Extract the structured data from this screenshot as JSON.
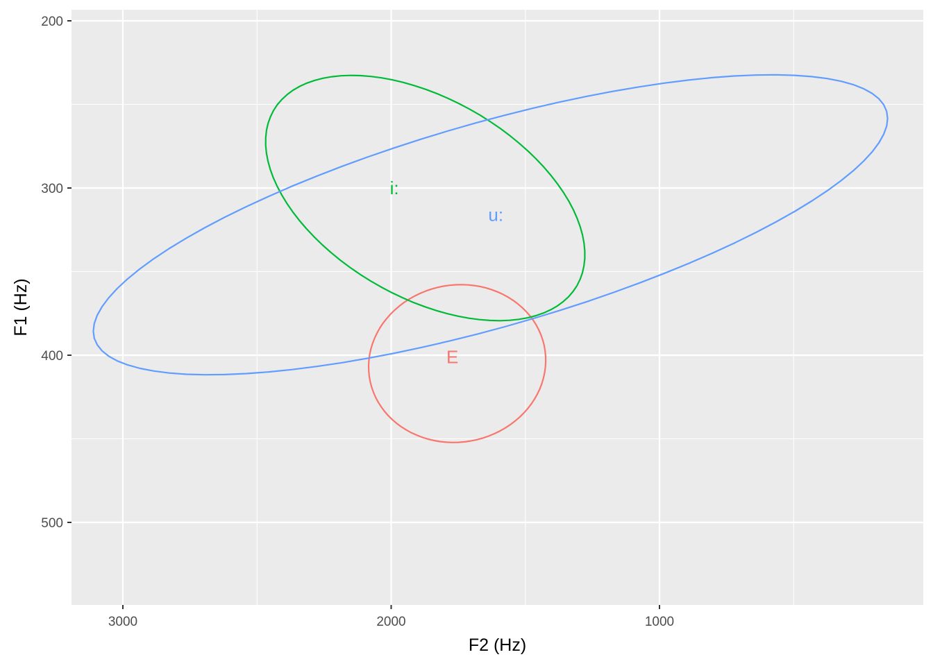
{
  "chart_data": {
    "type": "scatter",
    "subtype": "confidence-ellipses",
    "title": "",
    "xlabel": "F2 (Hz)",
    "ylabel": "F1 (Hz)",
    "x_reversed": true,
    "y_reversed": true,
    "xlim": [
      3190,
      -1000
    ],
    "ylim": [
      200,
      548
    ],
    "x_ticks": [
      3000,
      2000,
      1000
    ],
    "x_tick_labels": [
      "3000",
      "2000",
      "1000"
    ],
    "y_ticks": [
      200,
      300,
      400,
      500
    ],
    "y_tick_labels": [
      "200",
      "300",
      "400",
      "500"
    ],
    "grid": true,
    "legend": "none",
    "background": "#ebebeb",
    "series": [
      {
        "name": "E",
        "color": "#F8766D",
        "centroid": [
          1772,
          401
        ],
        "label": {
          "x": 1772,
          "y": 401
        },
        "ellipse": {
          "center": [
            1754,
            405
          ],
          "rx": 293,
          "ry": 128,
          "angle_deg": 80
        }
      },
      {
        "name": "i:",
        "color": "#00BA38",
        "centroid": [
          1988,
          300
        ],
        "label": {
          "x": 1988,
          "y": 300
        },
        "ellipse": {
          "center": [
            1873,
            306
          ],
          "rx": 653,
          "ry": 143,
          "angle_deg": 30
        }
      },
      {
        "name": "u:",
        "color": "#619CFF",
        "centroid": [
          1610,
          316
        ],
        "label": {
          "x": 1610,
          "y": 316
        },
        "ellipse": {
          "center": [
            1630,
            322
          ],
          "rx": 1536,
          "ry": 147,
          "angle_deg": -16
        }
      }
    ]
  }
}
